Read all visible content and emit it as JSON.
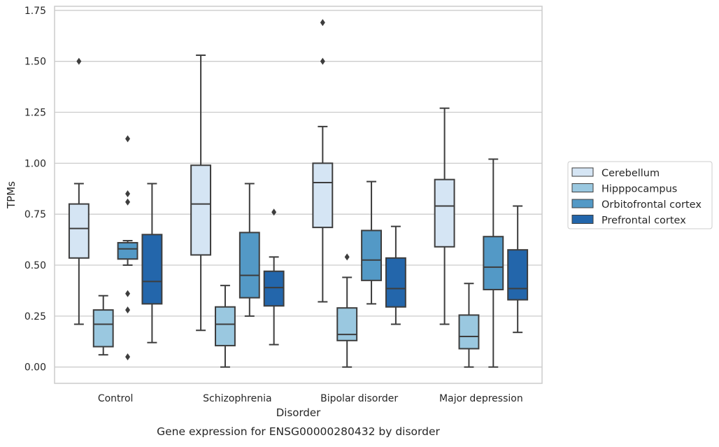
{
  "chart_data": {
    "type": "boxplot",
    "caption": "Gene expression for ENSG00000280432 by disorder",
    "xlabel": "Disorder",
    "ylabel": "TPMs",
    "ylim": [
      -0.08,
      1.77
    ],
    "yticks": [
      0.0,
      0.25,
      0.5,
      0.75,
      1.0,
      1.25,
      1.5,
      1.75
    ],
    "ytick_labels": [
      "0.00",
      "0.25",
      "0.50",
      "0.75",
      "1.00",
      "1.25",
      "1.50",
      "1.75"
    ],
    "grid": true,
    "legend_position": "right",
    "categories": [
      "Control",
      "Schizophrenia",
      "Bipolar disorder",
      "Major depression"
    ],
    "series": [
      {
        "name": "Cerebellum",
        "color": "#d5e5f4",
        "boxes": [
          {
            "whislo": 0.21,
            "q1": 0.535,
            "med": 0.68,
            "q3": 0.8,
            "whishi": 0.9,
            "fliers": [
              1.5
            ]
          },
          {
            "whislo": 0.18,
            "q1": 0.55,
            "med": 0.8,
            "q3": 0.99,
            "whishi": 1.53,
            "fliers": []
          },
          {
            "whislo": 0.32,
            "q1": 0.685,
            "med": 0.905,
            "q3": 1.0,
            "whishi": 1.18,
            "fliers": [
              1.5,
              1.69
            ]
          },
          {
            "whislo": 0.21,
            "q1": 0.59,
            "med": 0.79,
            "q3": 0.92,
            "whishi": 1.27,
            "fliers": []
          }
        ]
      },
      {
        "name": "Hipppocampus",
        "color": "#9ac8e0",
        "boxes": [
          {
            "whislo": 0.06,
            "q1": 0.1,
            "med": 0.21,
            "q3": 0.28,
            "whishi": 0.35,
            "fliers": []
          },
          {
            "whislo": 0.0,
            "q1": 0.105,
            "med": 0.21,
            "q3": 0.295,
            "whishi": 0.4,
            "fliers": []
          },
          {
            "whislo": 0.0,
            "q1": 0.13,
            "med": 0.16,
            "q3": 0.29,
            "whishi": 0.44,
            "fliers": [
              0.54
            ]
          },
          {
            "whislo": 0.0,
            "q1": 0.09,
            "med": 0.15,
            "q3": 0.255,
            "whishi": 0.41,
            "fliers": []
          }
        ]
      },
      {
        "name": "Orbitofrontal cortex",
        "color": "#5399c6",
        "boxes": [
          {
            "whislo": 0.5,
            "q1": 0.53,
            "med": 0.58,
            "q3": 0.61,
            "whishi": 0.62,
            "fliers": [
              1.12,
              0.85,
              0.81,
              0.36,
              0.28,
              0.05
            ]
          },
          {
            "whislo": 0.25,
            "q1": 0.34,
            "med": 0.45,
            "q3": 0.66,
            "whishi": 0.9,
            "fliers": []
          },
          {
            "whislo": 0.31,
            "q1": 0.425,
            "med": 0.525,
            "q3": 0.67,
            "whishi": 0.91,
            "fliers": []
          },
          {
            "whislo": 0.0,
            "q1": 0.38,
            "med": 0.49,
            "q3": 0.64,
            "whishi": 1.02,
            "fliers": []
          }
        ]
      },
      {
        "name": "Prefrontal cortex",
        "color": "#2366ab",
        "boxes": [
          {
            "whislo": 0.12,
            "q1": 0.31,
            "med": 0.42,
            "q3": 0.65,
            "whishi": 0.9,
            "fliers": []
          },
          {
            "whislo": 0.11,
            "q1": 0.3,
            "med": 0.39,
            "q3": 0.47,
            "whishi": 0.54,
            "fliers": [
              0.76
            ]
          },
          {
            "whislo": 0.21,
            "q1": 0.295,
            "med": 0.385,
            "q3": 0.535,
            "whishi": 0.69,
            "fliers": []
          },
          {
            "whislo": 0.17,
            "q1": 0.33,
            "med": 0.385,
            "q3": 0.575,
            "whishi": 0.79,
            "fliers": []
          }
        ]
      }
    ]
  }
}
